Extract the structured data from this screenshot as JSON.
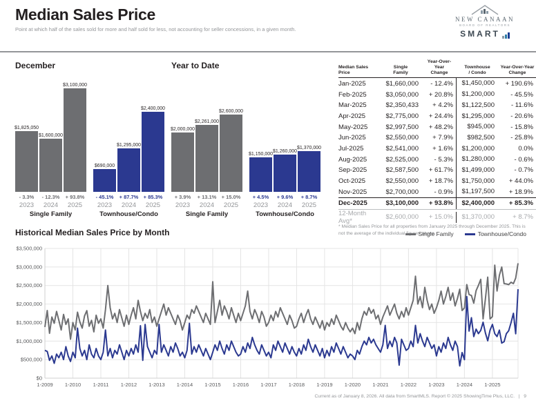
{
  "header": {
    "title": "Median Sales Price",
    "subtitle": "Point at which half of the sales sold for more and half sold for less, not accounting for seller concessions, in a given month.",
    "logo": {
      "org_name": "NEW CANAAN",
      "org_subtitle": "BOARD OF REALTORS",
      "brand": "SMART"
    }
  },
  "colors": {
    "single_family": "#6d6e71",
    "townhouse_condo": "#2b3990",
    "text_dark": "#231f20",
    "text_gray": "#939598"
  },
  "bar_charts": [
    {
      "title": "December",
      "groups": [
        {
          "label": "Single Family",
          "color_key": "single_family",
          "bars": [
            {
              "year": "2023",
              "value": 1825050,
              "value_label": "$1,825,050",
              "change": "- 3.3%"
            },
            {
              "year": "2024",
              "value": 1600000,
              "value_label": "$1,600,000",
              "change": "- 12.3%"
            },
            {
              "year": "2025",
              "value": 3100000,
              "value_label": "$3,100,000",
              "change": "+ 93.8%"
            }
          ]
        },
        {
          "label": "Townhouse/Condo",
          "color_key": "townhouse_condo",
          "bars": [
            {
              "year": "2023",
              "value": 690000,
              "value_label": "$690,000",
              "change": "- 45.1%"
            },
            {
              "year": "2024",
              "value": 1295000,
              "value_label": "$1,295,000",
              "change": "+ 87.7%"
            },
            {
              "year": "2025",
              "value": 2400000,
              "value_label": "$2,400,000",
              "change": "+ 85.3%"
            }
          ]
        }
      ]
    },
    {
      "title": "Year to Date",
      "groups": [
        {
          "label": "Single Family",
          "color_key": "single_family",
          "bars": [
            {
              "year": "2023",
              "value": 2000000,
              "value_label": "$2,000,000",
              "change": "+ 3.9%"
            },
            {
              "year": "2024",
              "value": 2261000,
              "value_label": "$2,261,000",
              "change": "+ 13.1%"
            },
            {
              "year": "2025",
              "value": 2600000,
              "value_label": "$2,600,000",
              "change": "+ 15.0%"
            }
          ]
        },
        {
          "label": "Townhouse/Condo",
          "color_key": "townhouse_condo",
          "bars": [
            {
              "year": "2023",
              "value": 1150000,
              "value_label": "$1,150,000",
              "change": "+ 4.5%"
            },
            {
              "year": "2024",
              "value": 1260000,
              "value_label": "$1,260,000",
              "change": "+ 9.6%"
            },
            {
              "year": "2025",
              "value": 1370000,
              "value_label": "$1,370,000",
              "change": "+ 8.7%"
            }
          ]
        }
      ]
    }
  ],
  "table": {
    "headers": [
      "Median Sales Price",
      "Single\nFamily",
      "Year-Over-Year\nChange",
      "Townhouse\n/ Condo",
      "Year-Over-Year\nChange"
    ],
    "rows": [
      [
        "Jan-2025",
        "$1,660,000",
        "- 12.4%",
        "$1,450,000",
        "+ 190.6%"
      ],
      [
        "Feb-2025",
        "$3,050,000",
        "+ 20.8%",
        "$1,200,000",
        "- 45.5%"
      ],
      [
        "Mar-2025",
        "$2,350,433",
        "+ 4.2%",
        "$1,122,500",
        "- 11.6%"
      ],
      [
        "Apr-2025",
        "$2,775,000",
        "+ 24.4%",
        "$1,295,000",
        "- 20.6%"
      ],
      [
        "May-2025",
        "$2,997,500",
        "+ 48.2%",
        "$945,000",
        "- 15.8%"
      ],
      [
        "Jun-2025",
        "$2,550,000",
        "+ 7.9%",
        "$982,500",
        "- 25.8%"
      ],
      [
        "Jul-2025",
        "$2,541,000",
        "+ 1.6%",
        "$1,200,000",
        "0.0%"
      ],
      [
        "Aug-2025",
        "$2,525,000",
        "- 5.3%",
        "$1,280,000",
        "- 0.6%"
      ],
      [
        "Sep-2025",
        "$2,587,500",
        "+ 61.7%",
        "$1,499,000",
        "- 0.7%"
      ],
      [
        "Oct-2025",
        "$2,550,000",
        "+ 18.7%",
        "$1,750,000",
        "+ 44.0%"
      ],
      [
        "Nov-2025",
        "$2,700,000",
        "- 0.9%",
        "$1,197,500",
        "+ 18.9%"
      ],
      [
        "Dec-2025",
        "$3,100,000",
        "+ 93.8%",
        "$2,400,000",
        "+ 85.3%"
      ]
    ],
    "summary_row": [
      "12-Month Avg*",
      "$2,600,000",
      "+ 15.0%",
      "$1,370,000",
      "+ 8.7%"
    ],
    "footnote": "* Median Sales Price for all properties from January 2025 through December 2025. This is not the average of the individual figures above."
  },
  "chart_data": {
    "type": "line",
    "title": "Historical Median Sales Price by Month",
    "x_start": "1-2009",
    "x_end": "12-2025",
    "x_tick_labels": [
      "1-2009",
      "1-2010",
      "1-2011",
      "1-2012",
      "1-2013",
      "1-2014",
      "1-2015",
      "1-2016",
      "1-2017",
      "1-2018",
      "1-2019",
      "1-2020",
      "1-2021",
      "1-2022",
      "1-2023",
      "1-2024",
      "1-2025"
    ],
    "y_tick_labels": [
      "$0",
      "$500,000",
      "$1,000,000",
      "$1,500,000",
      "$2,000,000",
      "$2,500,000",
      "$3,000,000",
      "$3,500,000"
    ],
    "ylim": [
      0,
      3500000
    ],
    "grid": true,
    "legend_position": "top-right",
    "note": "Monthly values Jan-2009 to Dec-2025; pre-2023 values estimated from plot, 2024-2025 anchored to table figures.",
    "series": [
      {
        "name": "Single Family",
        "color": "#6d6e71",
        "values": [
          1380000,
          1825000,
          1210000,
          1650000,
          1480000,
          1800000,
          1560000,
          1300000,
          1720000,
          1450000,
          1600000,
          1050000,
          1500000,
          1300000,
          1780000,
          1520000,
          1350000,
          1680000,
          1820000,
          1400000,
          1560000,
          1250000,
          1700000,
          1480000,
          1600000,
          1350000,
          1850000,
          2500000,
          1900000,
          1600000,
          1750000,
          1500000,
          1850000,
          1620000,
          1400000,
          1700000,
          1450000,
          1700000,
          1900000,
          1600000,
          2100000,
          1800000,
          1550000,
          1750000,
          1620000,
          1850000,
          1500000,
          1650000,
          1400000,
          1600000,
          1800000,
          2000000,
          1700000,
          1900000,
          1750000,
          1600000,
          1450000,
          1700000,
          1550000,
          1300000,
          1500000,
          1700000,
          1600000,
          1850000,
          1750000,
          1950000,
          1800000,
          1650000,
          1500000,
          1750000,
          1600000,
          1450000,
          2600000,
          1500000,
          1800000,
          2100000,
          1700000,
          1950000,
          1800000,
          1600000,
          1900000,
          1700000,
          1500000,
          1750000,
          1550000,
          1750000,
          1950000,
          2350000,
          1800000,
          1600000,
          1850000,
          1700000,
          1500000,
          1800000,
          1650000,
          1400000,
          1500000,
          1700000,
          1550000,
          1800000,
          1650000,
          1900000,
          1750000,
          1600000,
          1450000,
          1700000,
          1550000,
          1350000,
          1400000,
          1600000,
          1750000,
          1500000,
          1700000,
          1850000,
          1600000,
          1450000,
          1650000,
          1500000,
          1350000,
          1550000,
          1300000,
          1500000,
          1400000,
          1600000,
          1450000,
          1700000,
          1550000,
          1400000,
          1300000,
          1500000,
          1350000,
          1250000,
          1350000,
          1200000,
          1500000,
          1300000,
          1600000,
          1800000,
          1700000,
          1900000,
          1750000,
          1850000,
          1600000,
          1700000,
          1450000,
          1650000,
          1800000,
          1950000,
          1700000,
          1850000,
          2000000,
          1750000,
          1600000,
          1800000,
          1650000,
          1900000,
          1700000,
          1900000,
          2100000,
          2750000,
          2000000,
          2200000,
          1900000,
          2450000,
          2100000,
          1850000,
          2000000,
          1750000,
          1900000,
          2100000,
          2350000,
          2000000,
          2200000,
          2450000,
          2100000,
          2300000,
          1950000,
          2150000,
          2400000,
          1825050,
          1895000,
          2525000,
          2256000,
          2231000,
          2023000,
          2363000,
          2501000,
          2666000,
          1600000,
          2148000,
          2725000,
          1600000,
          1660000,
          3050000,
          2350433,
          2775000,
          2997500,
          2550000,
          2541000,
          2525000,
          2587500,
          2550000,
          2700000,
          3100000
        ]
      },
      {
        "name": "Townhouse/Condo",
        "color": "#2b3990",
        "values": [
          750000,
          720000,
          480000,
          600000,
          400000,
          650000,
          550000,
          700000,
          500000,
          850000,
          600000,
          450000,
          700000,
          550000,
          1350000,
          800000,
          600000,
          750000,
          500000,
          900000,
          650000,
          550000,
          800000,
          600000,
          500000,
          700000,
          1300000,
          600000,
          800000,
          550000,
          750000,
          650000,
          900000,
          700000,
          500000,
          750000,
          600000,
          800000,
          650000,
          900000,
          700000,
          1414000,
          480000,
          1450000,
          850000,
          700000,
          550000,
          750000,
          650000,
          1450000,
          700000,
          900000,
          750000,
          600000,
          850000,
          700000,
          950000,
          800000,
          600000,
          700000,
          550000,
          750000,
          1480000,
          650000,
          850000,
          700000,
          900000,
          750000,
          600000,
          800000,
          650000,
          500000,
          700000,
          900000,
          750000,
          1000000,
          800000,
          650000,
          900000,
          750000,
          1000000,
          850000,
          700000,
          600000,
          650000,
          850000,
          700000,
          950000,
          800000,
          1100000,
          900000,
          750000,
          650000,
          900000,
          750000,
          600000,
          700000,
          550000,
          900000,
          750000,
          1000000,
          850000,
          700000,
          950000,
          800000,
          650000,
          850000,
          700000,
          600000,
          800000,
          650000,
          900000,
          750000,
          1050000,
          850000,
          700000,
          900000,
          750000,
          600000,
          800000,
          550000,
          750000,
          600000,
          850000,
          700000,
          950000,
          800000,
          650000,
          850000,
          700000,
          550000,
          650000,
          600000,
          500000,
          750000,
          650000,
          850000,
          1000000,
          900000,
          1100000,
          950000,
          1050000,
          900000,
          800000,
          700000,
          900000,
          1424000,
          800000,
          1000000,
          850000,
          1100000,
          950000,
          350000,
          1050000,
          900000,
          750000,
          800000,
          1000000,
          850000,
          1424000,
          950000,
          1200000,
          1000000,
          850000,
          1100000,
          950000,
          800000,
          900000,
          600000,
          850000,
          700000,
          950000,
          800000,
          1100000,
          900000,
          750000,
          1000000,
          850000,
          330000,
          690000,
          499000,
          2202000,
          1270000,
          1631000,
          1122500,
          1324000,
          1200000,
          1288000,
          1510000,
          1215000,
          1007500,
          1295000,
          1450000,
          1200000,
          1122500,
          1295000,
          945000,
          982500,
          1200000,
          1280000,
          1499000,
          1750000,
          1197500,
          2400000
        ]
      }
    ]
  },
  "footer": {
    "text": "Current as of January 8, 2026. All data from SmartMLS. Report © 2025 ShowingTime Plus, LLC.",
    "separator": "|",
    "page": "9"
  }
}
